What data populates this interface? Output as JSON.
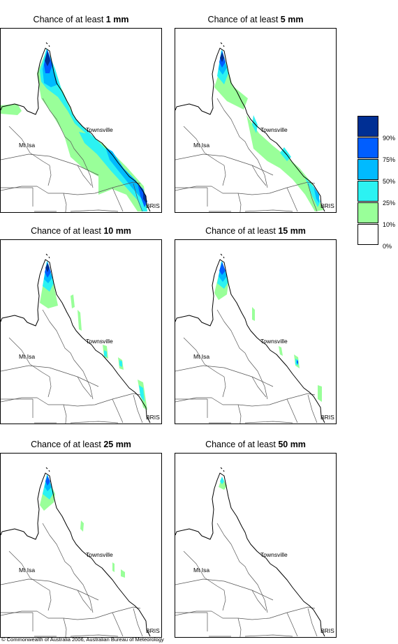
{
  "colors": {
    "p90": "#002f94",
    "p75": "#005eff",
    "p50": "#00baff",
    "p25": "#2cf2f2",
    "p10": "#99ff99",
    "p0": "#ffffff",
    "border": "#555555",
    "coast": "#000000"
  },
  "legend": {
    "labels": [
      "90%",
      "75%",
      "50%",
      "25%",
      "10%",
      "0%"
    ]
  },
  "map_labels": {
    "townsville": "Townsville",
    "mt_isa": "Mt Isa",
    "bris": "BRIS"
  },
  "panels": [
    {
      "title_prefix": "Chance of at least",
      "amount": "1 mm"
    },
    {
      "title_prefix": "Chance of at least",
      "amount": "5 mm"
    },
    {
      "title_prefix": "Chance of at least",
      "amount": "10 mm"
    },
    {
      "title_prefix": "Chance of at least",
      "amount": "15 mm"
    },
    {
      "title_prefix": "Chance of at least",
      "amount": "25 mm"
    },
    {
      "title_prefix": "Chance of at least",
      "amount": "50 mm"
    }
  ],
  "copyright": "© Commonwealth of Australia 2006, Australian Bureau of Meteorology"
}
